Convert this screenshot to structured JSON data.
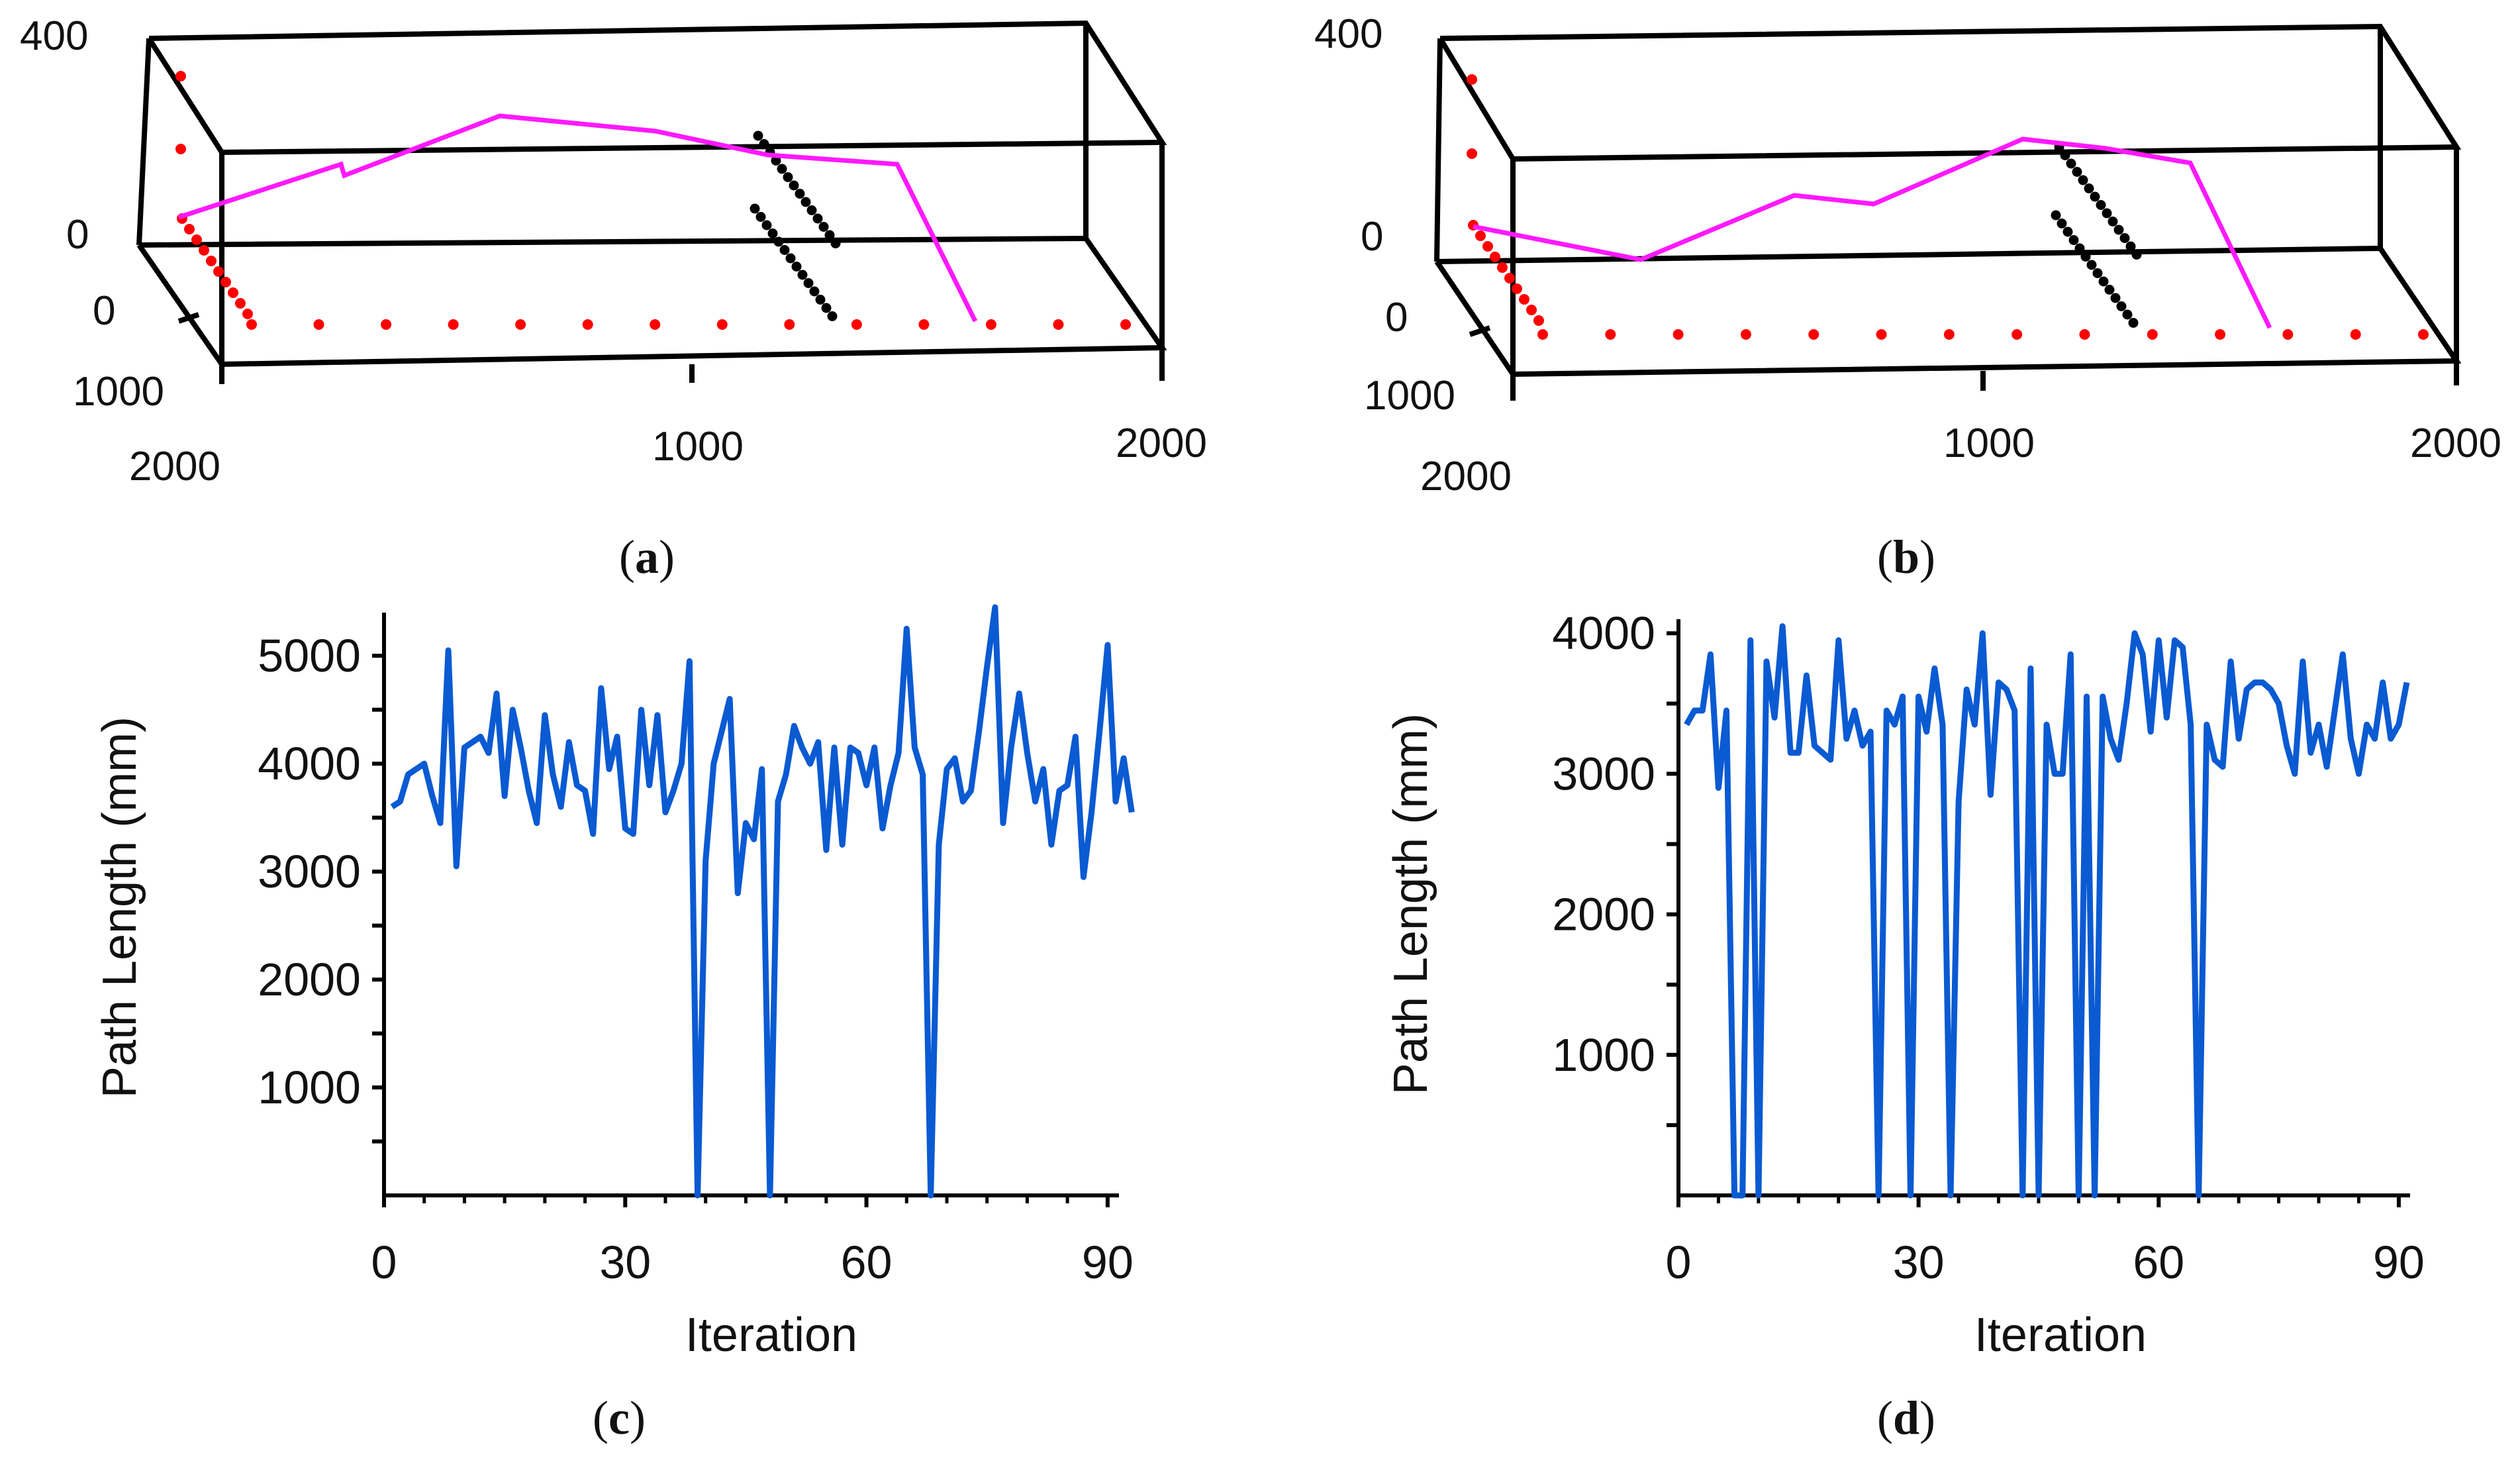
{
  "colors": {
    "series": "#0a5ad2",
    "path": "#ff19ff",
    "red_pts": "#ff0000",
    "obstacle": "#000000"
  },
  "chart_data": [
    {
      "id": "a",
      "type": "scatter-3d",
      "caption": "a",
      "tick_labels": {
        "z_top": "400",
        "z_zero": "0",
        "y_zero": "0",
        "y_1000": "1000",
        "y_2000": "2000",
        "x_1000": "1000",
        "x_2000": "2000"
      },
      "path": [
        [
          2000,
          0,
          0
        ],
        [
          1800,
          0,
          130
        ],
        [
          1780,
          0,
          100
        ],
        [
          1600,
          0,
          260
        ],
        [
          1300,
          0,
          230
        ],
        [
          1100,
          0,
          190
        ],
        [
          800,
          0,
          170
        ],
        [
          600,
          0,
          0
        ]
      ],
      "obstacle_rows": 2,
      "red_points_bottom": [
        2000,
        1850,
        1700,
        1550,
        1400,
        1250,
        1100,
        950,
        800,
        650,
        500,
        350,
        200,
        50
      ]
    },
    {
      "id": "b",
      "type": "scatter-3d",
      "caption": "b",
      "tick_labels": {
        "z_top": "400",
        "z_zero": "0",
        "y_zero": "0",
        "y_1000": "1000",
        "y_2000": "2000",
        "x_1000": "1000",
        "x_2000": "2000"
      },
      "path": [
        [
          2000,
          0,
          0
        ],
        [
          1650,
          0,
          -40
        ],
        [
          1450,
          0,
          60
        ],
        [
          1300,
          0,
          40
        ],
        [
          1100,
          0,
          210
        ],
        [
          900,
          0,
          190
        ],
        [
          800,
          0,
          160
        ],
        [
          600,
          0,
          0
        ]
      ],
      "obstacle_rows": 2,
      "red_points_bottom": [
        2000,
        1850,
        1700,
        1550,
        1400,
        1250,
        1100,
        950,
        800,
        650,
        500,
        350,
        200,
        50
      ]
    },
    {
      "id": "c",
      "type": "line",
      "caption": "c",
      "xlabel": "Iteration",
      "ylabel": "Path Length (mm)",
      "xlim": [
        0,
        91
      ],
      "ylim": [
        0,
        5400
      ],
      "xticks": [
        0,
        30,
        60,
        90
      ],
      "yticks": [
        1000,
        2000,
        3000,
        4000,
        5000
      ],
      "x_tick_labels": [
        "0",
        "30",
        "60",
        "90"
      ],
      "y_tick_labels": [
        "1000",
        "2000",
        "3000",
        "4000",
        "5000"
      ],
      "values": [
        3600,
        3650,
        3900,
        3950,
        4000,
        3700,
        3450,
        5050,
        3050,
        4150,
        4200,
        4250,
        4100,
        4650,
        3700,
        4500,
        4150,
        3750,
        3450,
        4450,
        3900,
        3600,
        4200,
        3800,
        3750,
        3350,
        4700,
        3950,
        4250,
        3400,
        3350,
        4500,
        3800,
        4450,
        3550,
        3750,
        4000,
        4950,
        0,
        3100,
        4000,
        4300,
        4600,
        2800,
        3450,
        3300,
        3950,
        0,
        3650,
        3900,
        4350,
        4150,
        4000,
        4200,
        3200,
        4150,
        3250,
        4150,
        4100,
        3800,
        4150,
        3400,
        3800,
        4100,
        5250,
        4150,
        3900,
        0,
        3250,
        3950,
        4050,
        3650,
        3750,
        4300,
        4900,
        5450,
        3450,
        4150,
        4650,
        4100,
        3650,
        3950,
        3250,
        3750,
        3800,
        4250,
        2950,
        3550,
        4300,
        5100,
        3650,
        4050,
        3550
      ]
    },
    {
      "id": "d",
      "type": "line",
      "caption": "d",
      "xlabel": "Iteration",
      "ylabel": "Path Length (mm)",
      "xlim": [
        0,
        91
      ],
      "ylim": [
        0,
        4100
      ],
      "xticks": [
        0,
        30,
        60,
        90
      ],
      "yticks": [
        1000,
        2000,
        3000,
        4000
      ],
      "x_tick_labels": [
        "0",
        "30",
        "60",
        "90"
      ],
      "y_tick_labels": [
        "1000",
        "2000",
        "3000",
        "4000"
      ],
      "values": [
        3350,
        3450,
        3450,
        3850,
        2900,
        3450,
        0,
        0,
        3950,
        0,
        3800,
        3400,
        4050,
        3150,
        3150,
        3700,
        3200,
        3150,
        3100,
        3950,
        3250,
        3450,
        3200,
        3300,
        0,
        3450,
        3350,
        3550,
        0,
        3550,
        3300,
        3750,
        3350,
        0,
        2800,
        3600,
        3350,
        4000,
        2850,
        3650,
        3600,
        3450,
        0,
        3750,
        0,
        3350,
        3000,
        3000,
        3850,
        0,
        3550,
        0,
        3550,
        3250,
        3100,
        3500,
        4000,
        3850,
        3300,
        3950,
        3400,
        3950,
        3900,
        3350,
        0,
        3350,
        3100,
        3050,
        3800,
        3250,
        3600,
        3650,
        3650,
        3600,
        3500,
        3200,
        3000,
        3800,
        3150,
        3350,
        3050,
        3450,
        3850,
        3250,
        3000,
        3350,
        3250,
        3650,
        3250,
        3350,
        3650
      ]
    }
  ]
}
